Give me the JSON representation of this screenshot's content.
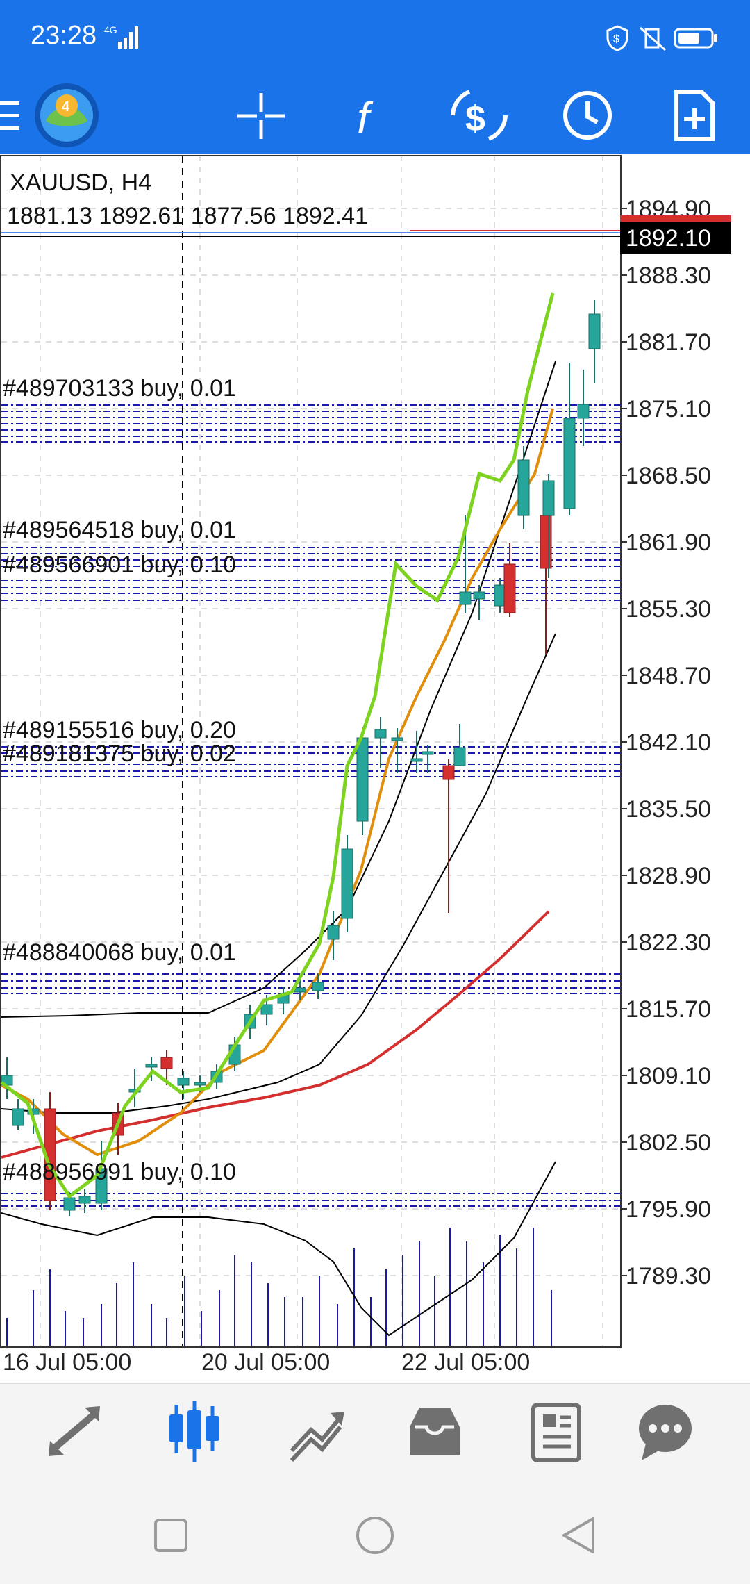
{
  "status_bar": {
    "time": "23:28",
    "network": "4G"
  },
  "toolbar": {
    "buttons": [
      {
        "name": "crosshair-button",
        "icon": "crosshair-icon"
      },
      {
        "name": "indicators-button",
        "icon": "function-icon"
      },
      {
        "name": "symbol-button",
        "icon": "dollar-exchange-icon"
      },
      {
        "name": "timeframe-button",
        "icon": "clock-icon"
      },
      {
        "name": "new-order-button",
        "icon": "document-plus-icon"
      }
    ]
  },
  "chart": {
    "symbol_label": "XAUUSD, H4",
    "ohlc_label": "1881.13 1892.61 1877.56 1892.41",
    "current_price": "1892.10",
    "price_labels": [
      "1894.90",
      "1888.30",
      "1881.70",
      "1875.10",
      "1868.50",
      "1861.90",
      "1855.30",
      "1848.70",
      "1842.10",
      "1835.50",
      "1828.90",
      "1822.30",
      "1815.70",
      "1809.10",
      "1802.50",
      "1795.90",
      "1789.30"
    ],
    "date_labels": [
      "16 Jul 05:00",
      "20 Jul 05:00",
      "22 Jul 05:00"
    ],
    "order_labels": [
      "#489703133 buy, 0.01",
      "#489564518 buy, 0.01",
      "#489566901 buy, 0.10",
      "#489155516 buy, 0.20",
      "#489181375 buy, 0.02",
      "#488840068 buy, 0.01",
      "#488956991 buy, 0.10"
    ],
    "colors": {
      "bull": "#26a69a",
      "bear": "#d32f2f",
      "ma_fast": "#7ed321",
      "ma_mid": "#e08e0b",
      "ma_slow": "#d32f2f",
      "bands": "#000000",
      "orders": "#1a1aaa",
      "volume": "#1a1aaa"
    }
  },
  "bottom_nav": {
    "items": [
      {
        "name": "quotes-tab",
        "icon": "arrows-icon",
        "active": false
      },
      {
        "name": "chart-tab",
        "icon": "candlestick-icon",
        "active": true
      },
      {
        "name": "trade-tab",
        "icon": "trend-icon",
        "active": false
      },
      {
        "name": "history-tab",
        "icon": "inbox-icon",
        "active": false
      },
      {
        "name": "news-tab",
        "icon": "newspaper-icon",
        "active": false
      },
      {
        "name": "chat-tab",
        "icon": "chat-bubble-icon",
        "active": false
      }
    ],
    "active_color": "#1a73e8",
    "inactive_color": "#707070"
  }
}
